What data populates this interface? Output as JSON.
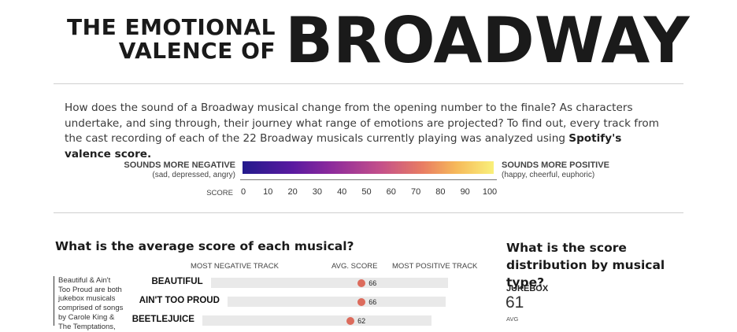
{
  "title": {
    "line1": "THE EMOTIONAL",
    "line2": "VALENCE OF",
    "big": "BROADWAY"
  },
  "intro": {
    "text": "How does the sound of a Broadway musical change from the opening number to the finale? As characters undertake, and sing through, their journey what range of emotions are projected? To find out, every track from the cast recording of each of the 22 Broadway musicals currently playing was analyzed using ",
    "bold": "Spotify's valence score."
  },
  "scale": {
    "negative_title": "SOUNDS MORE NEGATIVE",
    "negative_sub": "(sad, depressed, angry)",
    "positive_title": "SOUNDS MORE POSITIVE",
    "positive_sub": "(happy, cheerful, euphoric)",
    "score_label": "SCORE",
    "ticks": [
      "0",
      "10",
      "20",
      "30",
      "40",
      "50",
      "60",
      "70",
      "80",
      "90",
      "100"
    ],
    "colors": [
      "#231a8c",
      "#8c2a9c",
      "#e97e62",
      "#f9f07a"
    ]
  },
  "avg_section": {
    "heading": "What is the average score of each musical?",
    "col_negative": "MOST NEGATIVE TRACK",
    "col_avg": "AVG. SCORE",
    "col_positive": "MOST POSITIVE TRACK",
    "note": "Beautiful & Ain't Too Proud are both jukebox musicals comprised of songs by Carole King & The Temptations, respectively"
  },
  "dist_section": {
    "heading": "What is the score distribution by musical type?",
    "type_label": "JUKEBOX",
    "type_value": "61",
    "type_sub": "AVG"
  },
  "chart_data": {
    "type": "scatter",
    "title": "What is the average score of each musical?",
    "categories": [
      "BEAUTIFUL",
      "AIN'T TOO PROUD",
      "BEETLEJUICE"
    ],
    "series": [
      {
        "values": [
          66,
          66,
          62
        ],
        "labels": [
          "66",
          "66",
          "62"
        ]
      }
    ],
    "ranges": [
      {
        "min": 12,
        "max": 97
      },
      {
        "min": 18,
        "max": 96
      },
      {
        "min": 9,
        "max": 91
      }
    ],
    "xlim": [
      0,
      100
    ],
    "dot_color": "#dc6b5c",
    "track_color": "#e9e9e9"
  }
}
